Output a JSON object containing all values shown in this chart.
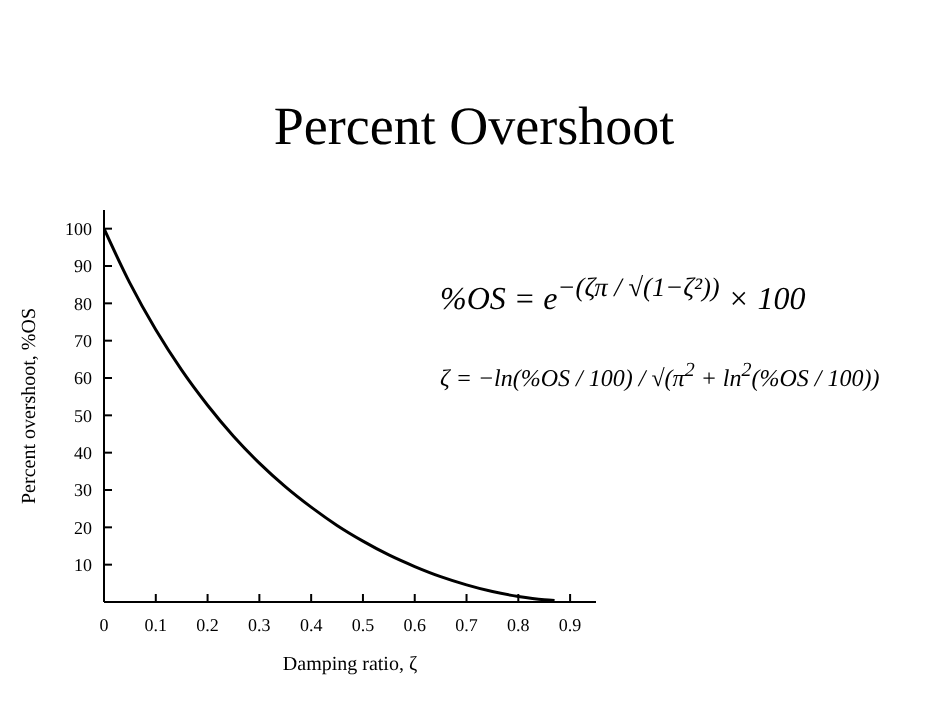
{
  "chart_data": {
    "type": "line",
    "title": "Percent Overshoot",
    "xlabel": "Damping ratio, ζ",
    "ylabel": "Percent overshoot, %OS",
    "x": [
      0,
      0.05,
      0.1,
      0.15,
      0.2,
      0.25,
      0.3,
      0.35,
      0.4,
      0.45,
      0.5,
      0.55,
      0.6,
      0.65,
      0.7,
      0.75,
      0.8,
      0.85,
      0.87
    ],
    "series": [
      {
        "color": "#000000",
        "values": [
          100,
          85.4,
          72.9,
          62.1,
          52.7,
          44.4,
          37.2,
          30.9,
          25.4,
          20.5,
          16.3,
          12.6,
          9.5,
          6.8,
          4.6,
          2.8,
          1.5,
          0.6,
          0.4
        ]
      }
    ],
    "xlim": [
      0,
      0.95
    ],
    "xticks": [
      0,
      0.1,
      0.2,
      0.3,
      0.4,
      0.5,
      0.6,
      0.7,
      0.8,
      0.9
    ],
    "ylim": [
      0,
      105
    ],
    "yticks": [
      10,
      20,
      30,
      40,
      50,
      60,
      70,
      80,
      90,
      100
    ],
    "grid": false,
    "legend": false,
    "marker": "none",
    "line_style": "solid",
    "annotations": [
      "%OS = e$^{−(ζπ / √(1−ζ²))}$ × 100",
      "ζ = −ln(%OS / 100) / √(π$^{2}$ + ln$^{2}$(%OS / 100))"
    ]
  }
}
